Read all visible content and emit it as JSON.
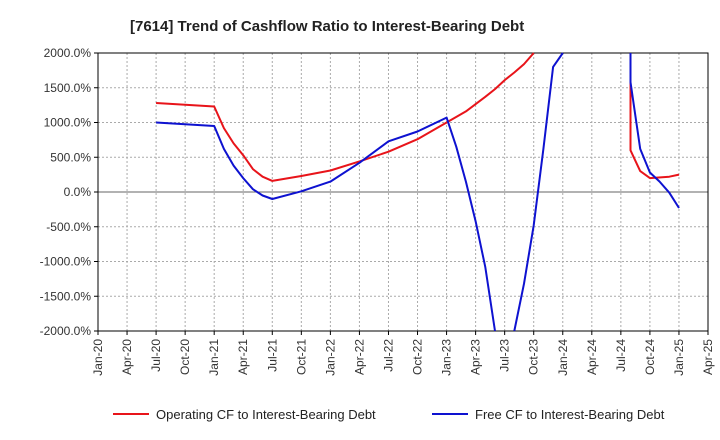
{
  "chart_data": {
    "type": "line",
    "title": "[7614]  Trend of Cashflow Ratio to Interest-Bearing Debt",
    "xlabel": "",
    "ylabel": "",
    "ylim": [
      -2000,
      2000
    ],
    "xlim": [
      "2020-01",
      "2025-04"
    ],
    "y_ticks": [
      "2000.0%",
      "1500.0%",
      "1000.0%",
      "500.0%",
      "0.0%",
      "-500.0%",
      "-1000.0%",
      "-1500.0%",
      "-2000.0%"
    ],
    "x_ticks": [
      "Jan-20",
      "Apr-20",
      "Jul-20",
      "Oct-20",
      "Jan-21",
      "Apr-21",
      "Jul-21",
      "Oct-21",
      "Jan-22",
      "Apr-22",
      "Jul-22",
      "Oct-22",
      "Jan-23",
      "Apr-23",
      "Jul-23",
      "Oct-23",
      "Jan-24",
      "Apr-24",
      "Jul-24",
      "Oct-24",
      "Jan-25",
      "Apr-25"
    ],
    "grid": true,
    "legend_position": "bottom",
    "series": [
      {
        "name": "Operating CF to Interest-Bearing Debt",
        "color": "#e8141a",
        "points": [
          [
            "2020-07",
            1280
          ],
          [
            "2021-01",
            1230
          ],
          [
            "2021-02",
            920
          ],
          [
            "2021-03",
            700
          ],
          [
            "2021-04",
            530
          ],
          [
            "2021-05",
            330
          ],
          [
            "2021-06",
            220
          ],
          [
            "2021-07",
            160
          ],
          [
            "2021-10",
            230
          ],
          [
            "2022-01",
            310
          ],
          [
            "2022-04",
            440
          ],
          [
            "2022-07",
            580
          ],
          [
            "2022-10",
            760
          ],
          [
            "2023-01",
            1000
          ],
          [
            "2023-03",
            1160
          ],
          [
            "2023-05",
            1370
          ],
          [
            "2023-06",
            1480
          ],
          [
            "2023-07",
            1610
          ],
          [
            "2023-08",
            1720
          ],
          [
            "2023-09",
            1840
          ],
          [
            "2023-10",
            2000
          ]
        ]
      },
      {
        "name": "Operating CF to Interest-Bearing Debt",
        "color": "#e8141a",
        "points": [
          [
            "2024-08",
            2000
          ],
          [
            "2024-08",
            600
          ],
          [
            "2024-09",
            300
          ],
          [
            "2024-10",
            200
          ],
          [
            "2024-12",
            220
          ],
          [
            "2025-01",
            250
          ]
        ]
      },
      {
        "name": "Free CF to Interest-Bearing Debt",
        "color": "#0e12d0",
        "points": [
          [
            "2020-07",
            1000
          ],
          [
            "2021-01",
            950
          ],
          [
            "2021-02",
            620
          ],
          [
            "2021-03",
            380
          ],
          [
            "2021-04",
            200
          ],
          [
            "2021-05",
            40
          ],
          [
            "2021-06",
            -50
          ],
          [
            "2021-07",
            -100
          ],
          [
            "2021-10",
            10
          ],
          [
            "2022-01",
            150
          ],
          [
            "2022-04",
            420
          ],
          [
            "2022-07",
            730
          ],
          [
            "2022-10",
            870
          ],
          [
            "2023-01",
            1070
          ],
          [
            "2023-02",
            650
          ],
          [
            "2023-03",
            150
          ],
          [
            "2023-04",
            -420
          ],
          [
            "2023-05",
            -1080
          ],
          [
            "2023-06",
            -2000
          ]
        ]
      },
      {
        "name": "Free CF to Interest-Bearing Debt",
        "color": "#0e12d0",
        "points": [
          [
            "2023-08",
            -2000
          ],
          [
            "2023-09",
            -1320
          ],
          [
            "2023-10",
            -480
          ],
          [
            "2023-11",
            620
          ],
          [
            "2023-12",
            1800
          ],
          [
            "2024-01",
            2000
          ]
        ]
      },
      {
        "name": "Free CF to Interest-Bearing Debt",
        "color": "#0e12d0",
        "points": [
          [
            "2024-08",
            2000
          ],
          [
            "2024-08",
            1580
          ],
          [
            "2024-09",
            620
          ],
          [
            "2024-10",
            280
          ],
          [
            "2024-11",
            150
          ],
          [
            "2024-12",
            -10
          ],
          [
            "2025-01",
            -230
          ]
        ]
      }
    ],
    "legend": [
      {
        "name": "Operating CF to Interest-Bearing Debt",
        "color": "#e8141a"
      },
      {
        "name": "Free CF to Interest-Bearing Debt",
        "color": "#0e12d0"
      }
    ]
  }
}
